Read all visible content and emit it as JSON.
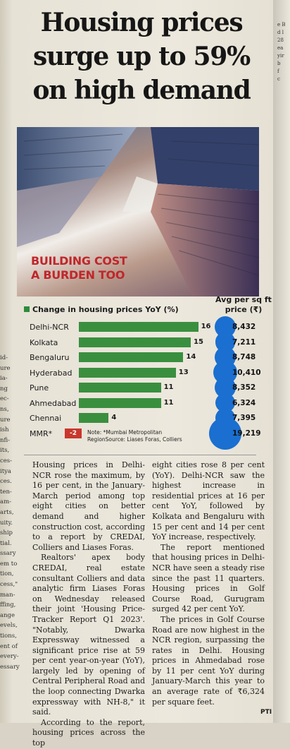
{
  "headline": [
    "Housing prices",
    "surge up to 59%",
    "on high demand"
  ],
  "photo_caption": [
    "BUILDING COST",
    "A BURDEN TOO"
  ],
  "chart_data": {
    "type": "bar",
    "title": "Change in housing prices YoY (%)",
    "price_header": "Avg per sq ft price (₹)",
    "categories": [
      "Delhi-NCR",
      "Kolkata",
      "Bengaluru",
      "Hyderabad",
      "Pune",
      "Ahmedabad",
      "Chennai",
      "MMR*"
    ],
    "values": [
      16,
      15,
      14,
      13,
      11,
      11,
      4,
      -2
    ],
    "value_labels": [
      "16",
      "15",
      "14",
      "13",
      "11",
      "11",
      "4",
      "-2"
    ],
    "prices": [
      8432,
      7211,
      8748,
      10410,
      8352,
      6324,
      7395,
      19219
    ],
    "price_labels": [
      "8,432",
      "7,211",
      "8,748",
      "10,410",
      "8,352",
      "6,324",
      "7,395",
      "19,219"
    ],
    "colors": {
      "bar": "#3a8f3f",
      "negative": "#c9372c",
      "dot": "#1a6fd0"
    },
    "note": "Note: *Mumbai Metropolitan RegionSource: Liases Foras, Colliers"
  },
  "article": {
    "col1": [
      "Housing prices in Delhi-NCR rose the maximum, by 16 per cent, in the January-March period among top eight cities on better demand and higher construction cost, according to a report by CREDAI, Colliers and Liases Foras.",
      "Realtors' apex body CREDAI, real estate consultant Colliers and data analytic firm Liases Foras on Wednesday released their joint 'Housing Price-Tracker Report Q1 2023'. \"Notably, Dwarka Expressway witnessed a significant price rise at 59 per cent year-on-year (YoY), largely led by opening of Central Peripheral Road and the loop connecting Dwarka expressway with NH-8,\" it said.",
      "According to the report, housing prices across the top"
    ],
    "col2": [
      "eight cities rose 8 per cent (YoY). Delhi-NCR saw the highest increase in residential prices at 16 per cent YoY, followed by Kolkata and Bengaluru with 15 per cent and 14 per cent YoY increase, respectively.",
      "The report mentioned that housing prices in Delhi-NCR have seen a steady rise since the past 11 quarters. Housing prices in Golf Course Road, Gurugram surged 42 per cent YoY.",
      "The prices in Golf Course Road are now highest in the NCR region, surpassing the rates in Delhi. Housing prices in Ahmedabad rose by 11 per cent YoY during January-March this year to an average rate of ₹6,324 per square feet."
    ],
    "credit": "PTI"
  },
  "left_strip": [
    "id-",
    "ure",
    "ia-",
    "ng",
    "",
    "ec-",
    "ns,",
    "ure",
    "ish",
    "nfi-",
    "",
    "its,",
    "ces-",
    "itya",
    "ces.",
    "ten-",
    "am-",
    "arts,",
    "uity.",
    "ship",
    "tial.",
    "ssary",
    "em to",
    "tion,",
    "cess,\"",
    "man-",
    "ffing,",
    "ange",
    "evels,",
    "tions,",
    "ent of",
    "every-",
    "essary"
  ],
  "right_strip": [
    "e B",
    "d l",
    "28",
    "ea",
    "yir",
    "b",
    "f",
    "c"
  ]
}
